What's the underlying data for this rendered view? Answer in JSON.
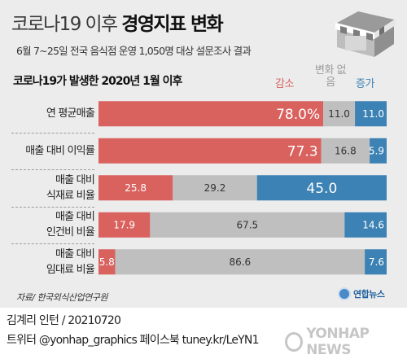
{
  "header": {
    "title_light": "코로나19 이후",
    "title_bold": "경영지표 변화",
    "subtitle": "6월 7~25일 전국 음식점 운영 1,050명 대상 설문조사 결과"
  },
  "section_title": "코로나19가 발생한 2020년 1월 이후",
  "legend": {
    "decrease": "감소",
    "no_change": "변화 없음",
    "increase": "증가"
  },
  "colors": {
    "decrease": "#d9625f",
    "no_change": "#c0bfc0",
    "increase": "#3c82b4",
    "panel": "#ececed"
  },
  "chart_data": {
    "type": "bar",
    "orientation": "horizontal",
    "stacked": true,
    "percent_scale": true,
    "categories": [
      "연 평균매출",
      "매출 대비 이익률",
      "매출 대비 식재료 비율",
      "매출 대비 인건비 비율",
      "매출 대비 임대료 비율"
    ],
    "category_lines": [
      [
        "연 평균매출"
      ],
      [
        "매출 대비 이익률"
      ],
      [
        "매출 대비",
        "식재료 비율"
      ],
      [
        "매출 대비",
        "인건비 비율"
      ],
      [
        "매출 대비",
        "임대료 비율"
      ]
    ],
    "series": [
      {
        "name": "감소",
        "values": [
          78.0,
          77.3,
          25.8,
          17.9,
          5.8
        ]
      },
      {
        "name": "변화 없음",
        "values": [
          11.0,
          16.8,
          29.2,
          67.5,
          86.6
        ]
      },
      {
        "name": "증가",
        "values": [
          11.0,
          5.9,
          45.0,
          14.6,
          7.6
        ]
      }
    ],
    "value_labels": [
      [
        "78.0%",
        "11.0",
        "11.0"
      ],
      [
        "77.3",
        "16.8",
        "5.9"
      ],
      [
        "25.8",
        "29.2",
        "45.0"
      ],
      [
        "17.9",
        "67.5",
        "14.6"
      ],
      [
        "5.8",
        "86.6",
        "7.6"
      ]
    ]
  },
  "source": "자료/ 한국외식산업연구원",
  "logo_text": "연합뉴스",
  "credit": "김계리 인턴 / 20210720",
  "social": "트위터 @yonhap_graphics  페이스북 tuney.kr/LeYN1",
  "watermark": "YONHAP NEWS"
}
